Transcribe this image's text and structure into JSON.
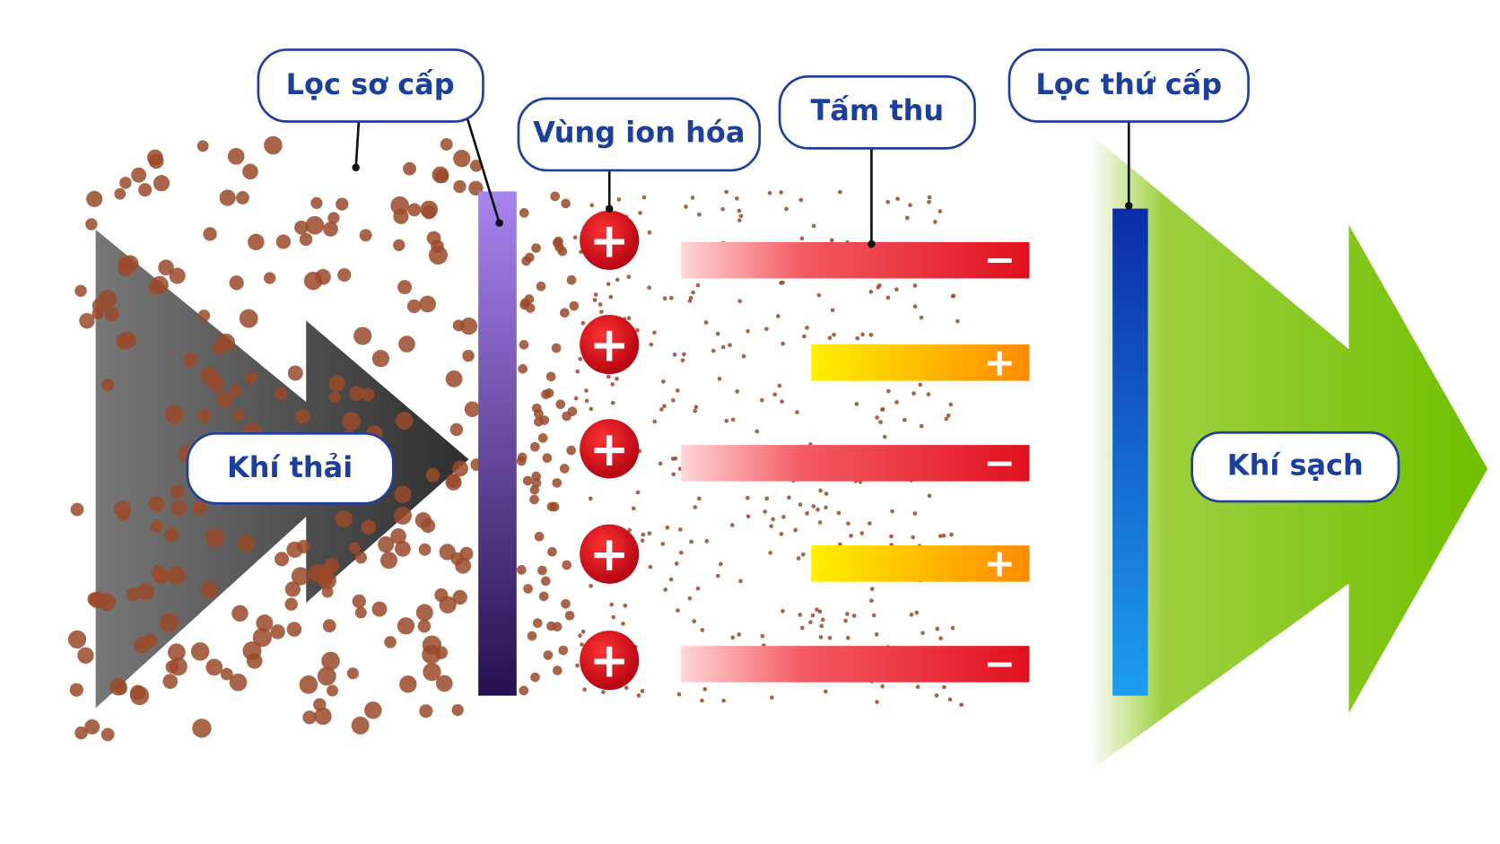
{
  "labels": {
    "primary_filter": "Lọc sơ cấp",
    "ionization_zone": "Vùng ion hóa",
    "collector_plates": "Tấm thu",
    "secondary_filter": "Lọc thứ cấp",
    "exhaust_gas": "Khí thải",
    "clean_air": "Khí sạch"
  },
  "ion_charges": [
    "+",
    "+",
    "+",
    "+",
    "+"
  ],
  "plate_charges": [
    "−",
    "+",
    "−",
    "+",
    "−"
  ]
}
